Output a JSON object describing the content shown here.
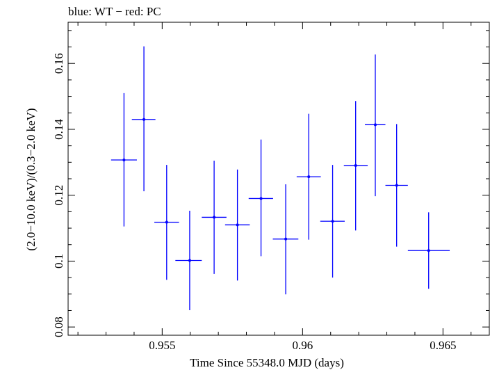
{
  "chart_data": {
    "type": "scatter",
    "title": "blue: WT − red: PC",
    "xlabel": "Time Since 55348.0 MJD (days)",
    "ylabel": "(2.0−10.0 keV)/(0.3−2.0 keV)",
    "xlim": [
      0.95165,
      0.96665
    ],
    "ylim": [
      0.0775,
      0.1725
    ],
    "xticks": [
      {
        "value": 0.955,
        "label": "0.955"
      },
      {
        "value": 0.96,
        "label": "0.96"
      },
      {
        "value": 0.965,
        "label": "0.965"
      }
    ],
    "yticks": [
      {
        "value": 0.08,
        "label": "0.08"
      },
      {
        "value": 0.1,
        "label": "0.1"
      },
      {
        "value": 0.12,
        "label": "0.12"
      },
      {
        "value": 0.14,
        "label": "0.14"
      },
      {
        "value": 0.16,
        "label": "0.16"
      }
    ],
    "series": [
      {
        "name": "WT",
        "color": "#0000ff",
        "points": [
          {
            "x": 0.95364,
            "xlo": 0.95318,
            "xhi": 0.9541,
            "y": 0.1307,
            "ylo": 0.1105,
            "yhi": 0.151
          },
          {
            "x": 0.95435,
            "xlo": 0.95392,
            "xhi": 0.95476,
            "y": 0.143,
            "ylo": 0.1212,
            "yhi": 0.1652
          },
          {
            "x": 0.95516,
            "xlo": 0.95472,
            "xhi": 0.9556,
            "y": 0.1118,
            "ylo": 0.0943,
            "yhi": 0.1292
          },
          {
            "x": 0.95598,
            "xlo": 0.95547,
            "xhi": 0.95641,
            "y": 0.1002,
            "ylo": 0.0851,
            "yhi": 0.1153
          },
          {
            "x": 0.95685,
            "xlo": 0.95641,
            "xhi": 0.95729,
            "y": 0.1133,
            "ylo": 0.0961,
            "yhi": 0.1305
          },
          {
            "x": 0.95768,
            "xlo": 0.95724,
            "xhi": 0.95812,
            "y": 0.111,
            "ylo": 0.0941,
            "yhi": 0.1278
          },
          {
            "x": 0.95852,
            "xlo": 0.95808,
            "xhi": 0.95895,
            "y": 0.119,
            "ylo": 0.1015,
            "yhi": 0.1369
          },
          {
            "x": 0.9594,
            "xlo": 0.95894,
            "xhi": 0.95985,
            "y": 0.1067,
            "ylo": 0.0899,
            "yhi": 0.1233
          },
          {
            "x": 0.96022,
            "xlo": 0.95979,
            "xhi": 0.96065,
            "y": 0.1256,
            "ylo": 0.1065,
            "yhi": 0.1447
          },
          {
            "x": 0.96107,
            "xlo": 0.96063,
            "xhi": 0.9615,
            "y": 0.1121,
            "ylo": 0.095,
            "yhi": 0.1292
          },
          {
            "x": 0.96189,
            "xlo": 0.96147,
            "xhi": 0.96232,
            "y": 0.129,
            "ylo": 0.1093,
            "yhi": 0.1486
          },
          {
            "x": 0.96259,
            "xlo": 0.96222,
            "xhi": 0.96295,
            "y": 0.1414,
            "ylo": 0.1197,
            "yhi": 0.1627
          },
          {
            "x": 0.96335,
            "xlo": 0.96295,
            "xhi": 0.96375,
            "y": 0.123,
            "ylo": 0.1044,
            "yhi": 0.1416
          },
          {
            "x": 0.96449,
            "xlo": 0.96375,
            "xhi": 0.96524,
            "y": 0.1032,
            "ylo": 0.0916,
            "yhi": 0.1148
          }
        ]
      }
    ]
  }
}
